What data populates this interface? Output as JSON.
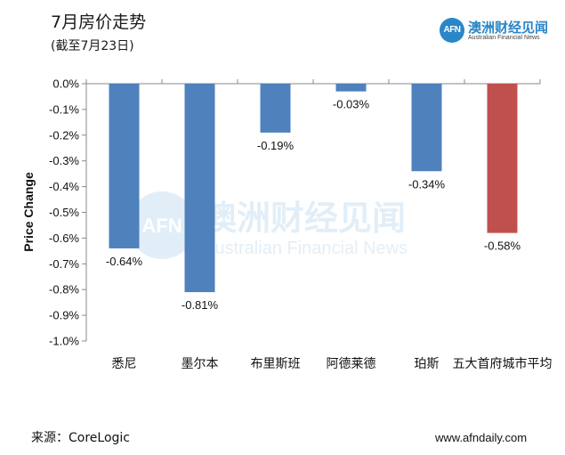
{
  "header": {
    "title": "7月房价走势",
    "subtitle": "(截至7月23日)"
  },
  "logo": {
    "mark": "AFN",
    "name_cn": "澳洲财经见闻",
    "name_en": "Australian Financial News"
  },
  "watermark": {
    "mark": "AFN",
    "name_cn": "澳洲财经见闻",
    "name_en": "Australian Financial News"
  },
  "footer": {
    "source": "来源：CoreLogic",
    "website": "www.afndaily.com"
  },
  "colors": {
    "bar_default": "#4f81bd",
    "bar_highlight": "#c0504d",
    "brand": "#2a86c8"
  },
  "chart_data": {
    "type": "bar",
    "title": "7月房价走势",
    "xlabel": "",
    "ylabel": "Price Change",
    "ylim": [
      -1.0,
      0.0
    ],
    "yticks": [
      0.0,
      -0.1,
      -0.2,
      -0.3,
      -0.4,
      -0.5,
      -0.6,
      -0.7,
      -0.8,
      -0.9,
      -1.0
    ],
    "ytick_labels": [
      "0.0%",
      "-0.1%",
      "-0.2%",
      "-0.3%",
      "-0.4%",
      "-0.5%",
      "-0.6%",
      "-0.7%",
      "-0.8%",
      "-0.9%",
      "-1.0%"
    ],
    "categories": [
      "悉尼",
      "墨尔本",
      "布里斯班",
      "阿德莱德",
      "珀斯",
      "五大首府城市平均"
    ],
    "values": [
      -0.64,
      -0.81,
      -0.19,
      -0.03,
      -0.34,
      -0.58
    ],
    "data_labels": [
      "-0.64%",
      "-0.81%",
      "-0.19%",
      "-0.03%",
      "-0.34%",
      "-0.58%"
    ],
    "highlight_index": 5,
    "grid": false,
    "legend": "none"
  }
}
